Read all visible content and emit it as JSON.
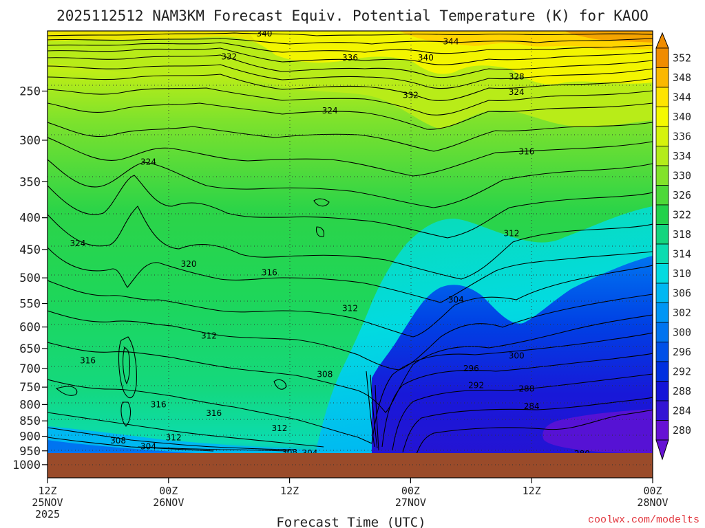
{
  "title": "2025112512 NAM3KM Forecast Equiv. Potential Temperature (K) for KAOO",
  "xlabel": "Forecast Time (UTC)",
  "credit": "coolwx.com/modelts",
  "colors": {
    "ground": "#9a4b2a",
    "contour": "#000000",
    "grid": "#333333"
  },
  "chart_data": {
    "type": "heatmap",
    "title": "2025112512 NAM3KM Forecast Equiv. Potential Temperature (K) for KAOO",
    "xlabel": "Forecast Time (UTC)",
    "ylabel": "",
    "y_scale": "log-pressure (inverted)",
    "x_range_hours": [
      0,
      60
    ],
    "y_range_hpa": [
      1050,
      200
    ],
    "y_ticks": [
      "250",
      "300",
      "350",
      "400",
      "450",
      "500",
      "550",
      "600",
      "650",
      "700",
      "750",
      "800",
      "850",
      "900",
      "950",
      "1000"
    ],
    "x_ticks": [
      {
        "hour": 0,
        "time": "12Z",
        "date": "25NOV",
        "year": "2025"
      },
      {
        "hour": 12,
        "time": "00Z",
        "date": "26NOV",
        "year": ""
      },
      {
        "hour": 24,
        "time": "12Z",
        "date": "",
        "year": ""
      },
      {
        "hour": 36,
        "time": "00Z",
        "date": "27NOV",
        "year": ""
      },
      {
        "hour": 48,
        "time": "12Z",
        "date": "",
        "year": ""
      },
      {
        "hour": 60,
        "time": "00Z",
        "date": "28NOV",
        "year": ""
      }
    ],
    "colorbar": {
      "levels": [
        "352",
        "348",
        "344",
        "340",
        "336",
        "334",
        "330",
        "326",
        "322",
        "318",
        "314",
        "310",
        "306",
        "302",
        "300",
        "296",
        "292",
        "288",
        "284",
        "280"
      ],
      "colors": [
        "#f08c00",
        "#fbb800",
        "#ffe400",
        "#f5f900",
        "#d6f30c",
        "#b4ec1a",
        "#82e32a",
        "#4dd938",
        "#22d24a",
        "#14d57e",
        "#0bdcb0",
        "#02dbe0",
        "#00b8f2",
        "#0096f5",
        "#0074f0",
        "#0050e8",
        "#0030e0",
        "#1414d8",
        "#3314d4",
        "#6612d4"
      ]
    },
    "contour_labels": [
      {
        "text": "340",
        "h": 21.5,
        "p": 202
      },
      {
        "text": "344",
        "h": 40,
        "p": 208
      },
      {
        "text": "332",
        "h": 18,
        "p": 220
      },
      {
        "text": "336",
        "h": 30,
        "p": 221
      },
      {
        "text": "340",
        "h": 37.5,
        "p": 221
      },
      {
        "text": "328",
        "h": 46.5,
        "p": 237
      },
      {
        "text": "332",
        "h": 36,
        "p": 254
      },
      {
        "text": "324",
        "h": 46.5,
        "p": 251
      },
      {
        "text": "324",
        "h": 28,
        "p": 269
      },
      {
        "text": "316",
        "h": 47.5,
        "p": 313
      },
      {
        "text": "324",
        "h": 10,
        "p": 325
      },
      {
        "text": "312",
        "h": 46,
        "p": 424
      },
      {
        "text": "324",
        "h": 3,
        "p": 440
      },
      {
        "text": "320",
        "h": 14,
        "p": 475
      },
      {
        "text": "316",
        "h": 22,
        "p": 490
      },
      {
        "text": "304",
        "h": 40.5,
        "p": 542
      },
      {
        "text": "312",
        "h": 30,
        "p": 560
      },
      {
        "text": "312",
        "h": 16,
        "p": 620
      },
      {
        "text": "300",
        "h": 46.5,
        "p": 668
      },
      {
        "text": "316",
        "h": 4,
        "p": 680
      },
      {
        "text": "296",
        "h": 42,
        "p": 700
      },
      {
        "text": "308",
        "h": 27.5,
        "p": 715
      },
      {
        "text": "292",
        "h": 42.5,
        "p": 745
      },
      {
        "text": "288",
        "h": 47.5,
        "p": 755
      },
      {
        "text": "316",
        "h": 11,
        "p": 800
      },
      {
        "text": "284",
        "h": 48,
        "p": 805
      },
      {
        "text": "316",
        "h": 16.5,
        "p": 826
      },
      {
        "text": "312",
        "h": 23,
        "p": 874
      },
      {
        "text": "312",
        "h": 12.5,
        "p": 905
      },
      {
        "text": "308",
        "h": 7,
        "p": 915
      },
      {
        "text": "304",
        "h": 10,
        "p": 935
      },
      {
        "text": "308",
        "h": 24,
        "p": 955
      },
      {
        "text": "304",
        "h": 26,
        "p": 958
      },
      {
        "text": "280",
        "h": 53,
        "p": 960
      }
    ]
  }
}
